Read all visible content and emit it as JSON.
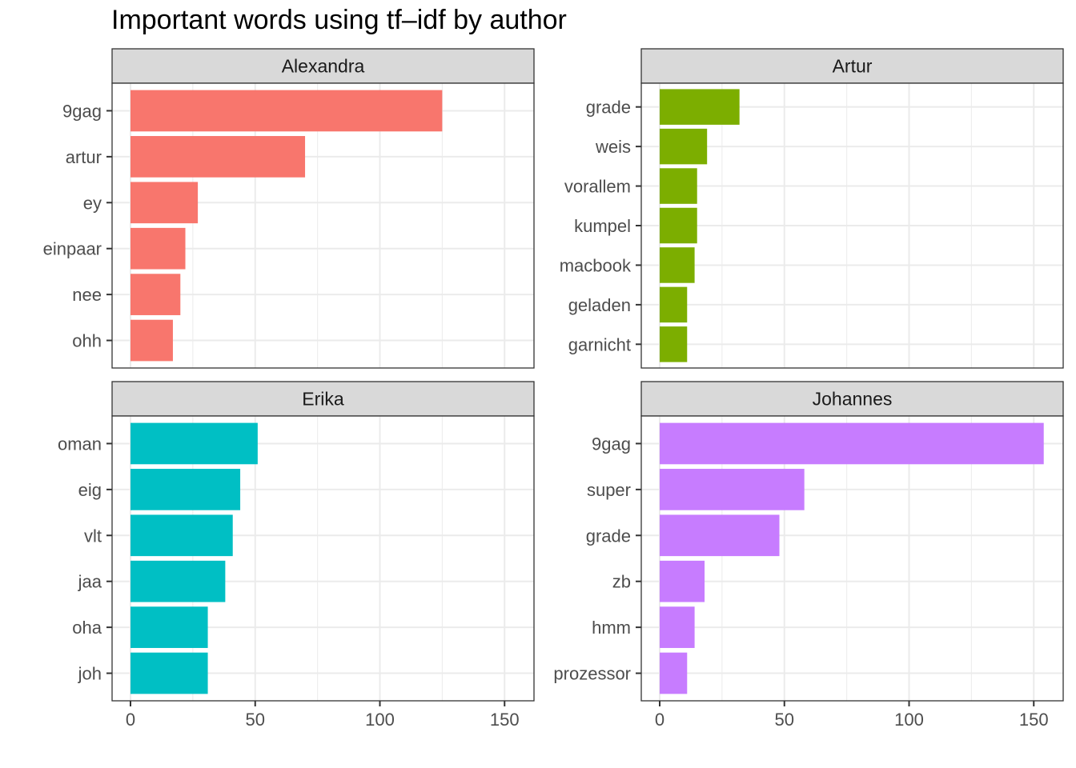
{
  "chart_data": {
    "type": "bar",
    "orientation": "horizontal",
    "title": "Important words using tf–idf by author",
    "xlabel": "",
    "ylabel": "",
    "xlim": [
      0,
      160
    ],
    "x_ticks": [
      0,
      50,
      100,
      150
    ],
    "grid": true,
    "legend": "none",
    "panels": [
      {
        "name": "Alexandra",
        "color": "#F8766D",
        "categories": [
          "9gag",
          "artur",
          "ey",
          "einpaar",
          "nee",
          "ohh"
        ],
        "values": [
          125,
          70,
          27,
          22,
          20,
          17
        ]
      },
      {
        "name": "Artur",
        "color": "#7CAE00",
        "categories": [
          "grade",
          "weis",
          "vorallem",
          "kumpel",
          "macbook",
          "geladen",
          "garnicht"
        ],
        "values": [
          32,
          19,
          15,
          15,
          14,
          11,
          11
        ]
      },
      {
        "name": "Erika",
        "color": "#00BFC4",
        "categories": [
          "oman",
          "eig",
          "vlt",
          "jaa",
          "oha",
          "joh"
        ],
        "values": [
          51,
          44,
          41,
          38,
          31,
          31
        ]
      },
      {
        "name": "Johannes",
        "color": "#C77CFF",
        "categories": [
          "9gag",
          "super",
          "grade",
          "zb",
          "hmm",
          "prozessor"
        ],
        "values": [
          154,
          58,
          48,
          18,
          14,
          11
        ]
      }
    ]
  }
}
